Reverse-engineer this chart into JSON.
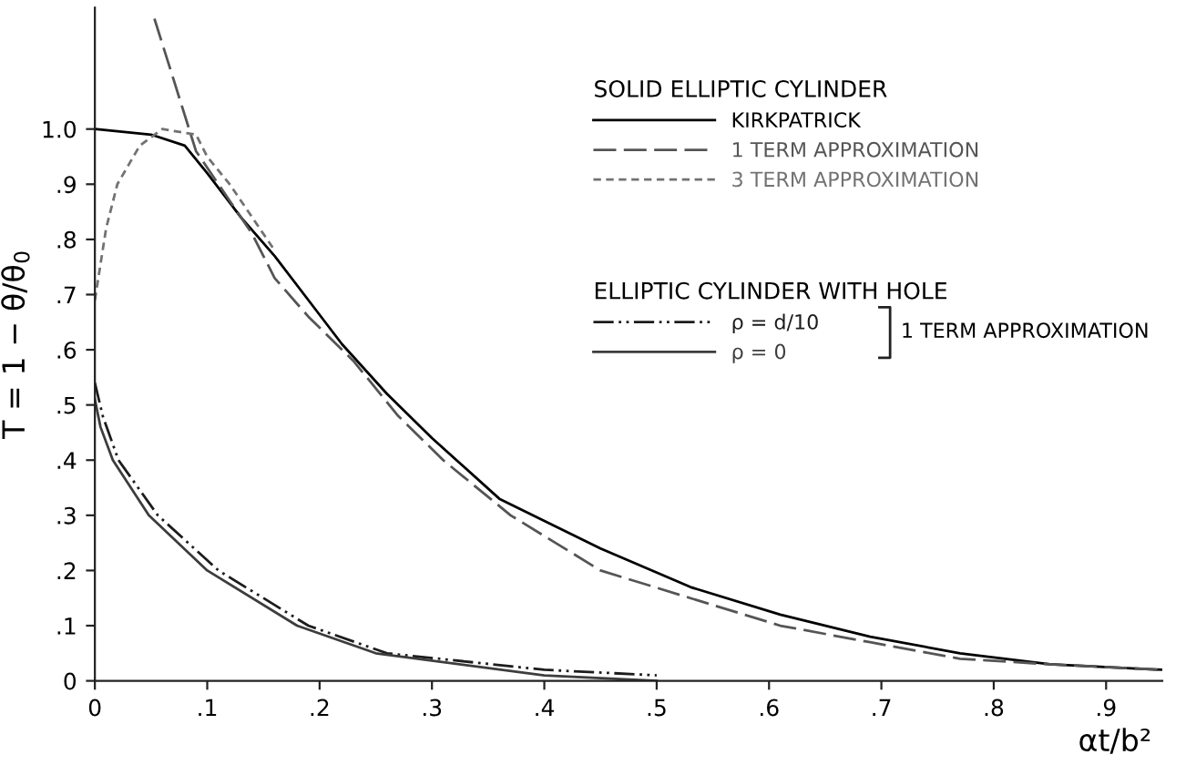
{
  "chart_data": {
    "type": "line",
    "xlabel": "αt/b²",
    "ylabel": "T = 1 − θ/θ$_{0}$",
    "legend_title": "SOLID ELLIPTIC CYLINDER",
    "annotations": [
      "ELLIPTIC CYLINDER WITH HOLE",
      "1 TERM APPROXIMATION"
    ],
    "xlim": [
      0,
      0.95
    ],
    "ylim": [
      0,
      1.22
    ],
    "xticks": [
      0,
      {
        "value": 0.1,
        "label": ".1"
      },
      {
        "value": 0.2,
        "label": ".2"
      },
      {
        "value": 0.3,
        "label": ".3"
      },
      {
        "value": 0.4,
        "label": ".4"
      },
      {
        "value": 0.5,
        "label": ".5"
      },
      {
        "value": 0.6,
        "label": ".6"
      },
      {
        "value": 0.7,
        "label": ".7"
      },
      {
        "value": 0.8,
        "label": ".8"
      },
      {
        "value": 0.9,
        "label": ".9"
      }
    ],
    "yticks": [
      0,
      {
        "value": 0.1,
        "label": ".1"
      },
      {
        "value": 0.2,
        "label": ".2"
      },
      {
        "value": 0.3,
        "label": ".3"
      },
      {
        "value": 0.4,
        "label": ".4"
      },
      {
        "value": 0.5,
        "label": ".5"
      },
      {
        "value": 0.6,
        "label": ".6"
      },
      {
        "value": 0.7,
        "label": ".7"
      },
      {
        "value": 0.8,
        "label": ".8"
      },
      {
        "value": 0.9,
        "label": ".9"
      },
      {
        "value": 1.0,
        "label": "1.0"
      }
    ],
    "grid": false,
    "legend": "top right",
    "marker": "none",
    "series": [
      {
        "name": "KIRKPATRICK",
        "color": "#000000",
        "line_style": "solid",
        "x": [
          0,
          0.05,
          0.08,
          0.1,
          0.13,
          0.16,
          0.19,
          0.22,
          0.26,
          0.3,
          0.36,
          0.45,
          0.53,
          0.61,
          0.69,
          0.77,
          0.85,
          0.95
        ],
        "values": [
          1.0,
          0.99,
          0.97,
          0.92,
          0.84,
          0.77,
          0.69,
          0.61,
          0.52,
          0.44,
          0.33,
          0.24,
          0.17,
          0.12,
          0.08,
          0.05,
          0.03,
          0.02
        ]
      },
      {
        "name": "1 TERM APPROXIMATION",
        "color": "#555555",
        "line_style": "dashed",
        "x": [
          0.053,
          0.07,
          0.09,
          0.11,
          0.14,
          0.16,
          0.19,
          0.23,
          0.27,
          0.31,
          0.37,
          0.45,
          0.53,
          0.61,
          0.69,
          0.77,
          0.85,
          0.95
        ],
        "values": [
          1.2,
          1.09,
          0.96,
          0.9,
          0.81,
          0.73,
          0.66,
          0.58,
          0.48,
          0.4,
          0.3,
          0.2,
          0.15,
          0.1,
          0.07,
          0.04,
          0.03,
          0.02
        ]
      },
      {
        "name": "3 TERM APPROXIMATION",
        "color": "#727272",
        "line_style": "dotted",
        "x": [
          0,
          0.01,
          0.02,
          0.04,
          0.06,
          0.09,
          0.1,
          0.12,
          0.16
        ],
        "values": [
          0.69,
          0.82,
          0.9,
          0.97,
          1.0,
          0.99,
          0.95,
          0.9,
          0.78
        ]
      },
      {
        "name": "ρ = d/10",
        "color": "#1c1c1c",
        "line_style": "dashdot",
        "x": [
          0,
          0.007,
          0.021,
          0.056,
          0.11,
          0.19,
          0.26,
          0.4,
          0.5
        ],
        "values": [
          0.54,
          0.48,
          0.4,
          0.3,
          0.2,
          0.1,
          0.05,
          0.02,
          0.01
        ]
      },
      {
        "name": "ρ = 0",
        "color": "#3d3d3d",
        "line_style": "solid",
        "x": [
          0,
          0.005,
          0.016,
          0.048,
          0.1,
          0.18,
          0.25,
          0.4,
          0.5
        ],
        "values": [
          0.51,
          0.46,
          0.4,
          0.3,
          0.2,
          0.1,
          0.05,
          0.01,
          0.0
        ]
      }
    ]
  }
}
